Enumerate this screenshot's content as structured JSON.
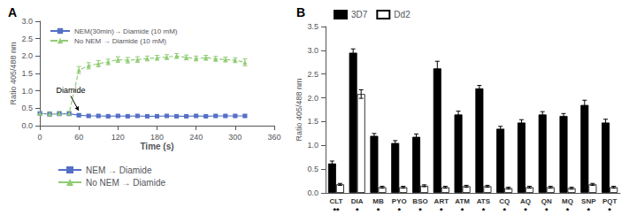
{
  "chart_data": [
    {
      "type": "line",
      "title": "A",
      "xlabel": "Time (s)",
      "ylabel": "Ratio 405/488 nm",
      "xlim": [
        0,
        360
      ],
      "xticks": [
        0,
        60,
        120,
        180,
        240,
        300,
        360
      ],
      "ylim": [
        0.0,
        3.0
      ],
      "yticks": [
        {
          "value": 0.0,
          "label": "0.0"
        },
        {
          "value": 0.5,
          "label": "0.5"
        },
        {
          "value": 1.0,
          "label": "1.0"
        },
        {
          "value": 1.5,
          "label": "1.5"
        },
        {
          "value": 2.0,
          "label": "2.0"
        },
        {
          "value": 2.5,
          "label": "2.5"
        },
        {
          "value": 3.0,
          "label": "3.0"
        }
      ],
      "grid": false,
      "legend": "upper left",
      "series": [
        {
          "name": "NEM(30min)→ Diamide (10 mM)",
          "marker": "square",
          "line_style": "solid",
          "x": [
            0,
            15,
            30,
            45,
            60,
            75,
            90,
            105,
            120,
            135,
            150,
            165,
            180,
            195,
            210,
            225,
            240,
            255,
            270,
            285,
            300,
            315
          ],
          "values": [
            0.35,
            0.33,
            0.34,
            0.34,
            0.3,
            0.28,
            0.28,
            0.27,
            0.28,
            0.27,
            0.28,
            0.27,
            0.27,
            0.28,
            0.27,
            0.27,
            0.28,
            0.27,
            0.28,
            0.28,
            0.28,
            0.28
          ],
          "errors": [
            0.05,
            0.05,
            0.05,
            0.05,
            0.04,
            0.03,
            0.03,
            0.03,
            0.03,
            0.03,
            0.03,
            0.03,
            0.03,
            0.03,
            0.03,
            0.03,
            0.03,
            0.03,
            0.03,
            0.03,
            0.03,
            0.03
          ]
        },
        {
          "name": "No NEM → Diamide (10 mM)",
          "marker": "triangle",
          "line_style": "dashed",
          "x": [
            0,
            15,
            30,
            45,
            60,
            75,
            90,
            105,
            120,
            135,
            150,
            165,
            180,
            195,
            210,
            225,
            240,
            255,
            270,
            285,
            300,
            315
          ],
          "values": [
            0.35,
            0.34,
            0.35,
            0.35,
            1.6,
            1.72,
            1.78,
            1.83,
            1.9,
            1.88,
            1.9,
            1.93,
            1.95,
            1.97,
            2.0,
            1.96,
            1.93,
            1.95,
            1.92,
            1.9,
            1.88,
            1.82
          ],
          "errors": [
            0.06,
            0.06,
            0.06,
            0.06,
            0.1,
            0.09,
            0.09,
            0.08,
            0.08,
            0.08,
            0.08,
            0.07,
            0.07,
            0.07,
            0.07,
            0.07,
            0.07,
            0.07,
            0.07,
            0.07,
            0.07,
            0.1
          ]
        }
      ],
      "annotations": [
        {
          "text": "Diamide",
          "x": 60,
          "y": 0.42,
          "text_x": 25,
          "text_y": 1.02
        }
      ],
      "legend_bottom": [
        {
          "name": "NEM → Diamide",
          "marker": "square",
          "line_style": "solid"
        },
        {
          "name": "No NEM → Diamide",
          "marker": "triangle",
          "line_style": "solid"
        }
      ]
    },
    {
      "type": "bar",
      "title": "B",
      "ylabel": "Ratio 405/488 nm",
      "categories": [
        "CLT",
        "DIA",
        "MB",
        "PYO",
        "BSO",
        "ART",
        "ATM",
        "ATS",
        "CQ",
        "AQ",
        "QN",
        "MQ",
        "SNP",
        "PQT"
      ],
      "ylim": [
        0.0,
        3.5
      ],
      "yticks": [
        {
          "value": 0.0,
          "label": "0.0"
        },
        {
          "value": 0.5,
          "label": "0.5"
        },
        {
          "value": 1.0,
          "label": "1.0"
        },
        {
          "value": 1.5,
          "label": "1.5"
        },
        {
          "value": 2.0,
          "label": "2.0"
        },
        {
          "value": 2.5,
          "label": "2.5"
        },
        {
          "value": 3.0,
          "label": "3.0"
        },
        {
          "value": 3.5,
          "label": "3.5"
        }
      ],
      "grid": false,
      "legend": "upper left",
      "series": [
        {
          "name": "3D7",
          "color": "#000000",
          "values": [
            0.62,
            2.95,
            1.2,
            1.05,
            1.18,
            2.62,
            1.65,
            2.2,
            1.35,
            1.48,
            1.65,
            1.62,
            1.85,
            1.48
          ],
          "errors": [
            0.05,
            0.08,
            0.05,
            0.05,
            0.06,
            0.15,
            0.07,
            0.06,
            0.05,
            0.06,
            0.06,
            0.05,
            0.1,
            0.07
          ]
        },
        {
          "name": "Dd2",
          "color": "#ffffff",
          "values": [
            0.18,
            2.08,
            0.12,
            0.12,
            0.15,
            0.12,
            0.14,
            0.14,
            0.1,
            0.12,
            0.12,
            0.1,
            0.18,
            0.12
          ],
          "errors": [
            0.02,
            0.09,
            0.02,
            0.02,
            0.02,
            0.02,
            0.02,
            0.02,
            0.02,
            0.02,
            0.02,
            0.02,
            0.02,
            0.02
          ]
        }
      ],
      "significance": [
        "**",
        "*",
        "*",
        "*",
        "*",
        "*",
        "*",
        "*",
        "*",
        "*",
        "*",
        "*",
        "*",
        "*"
      ]
    }
  ]
}
